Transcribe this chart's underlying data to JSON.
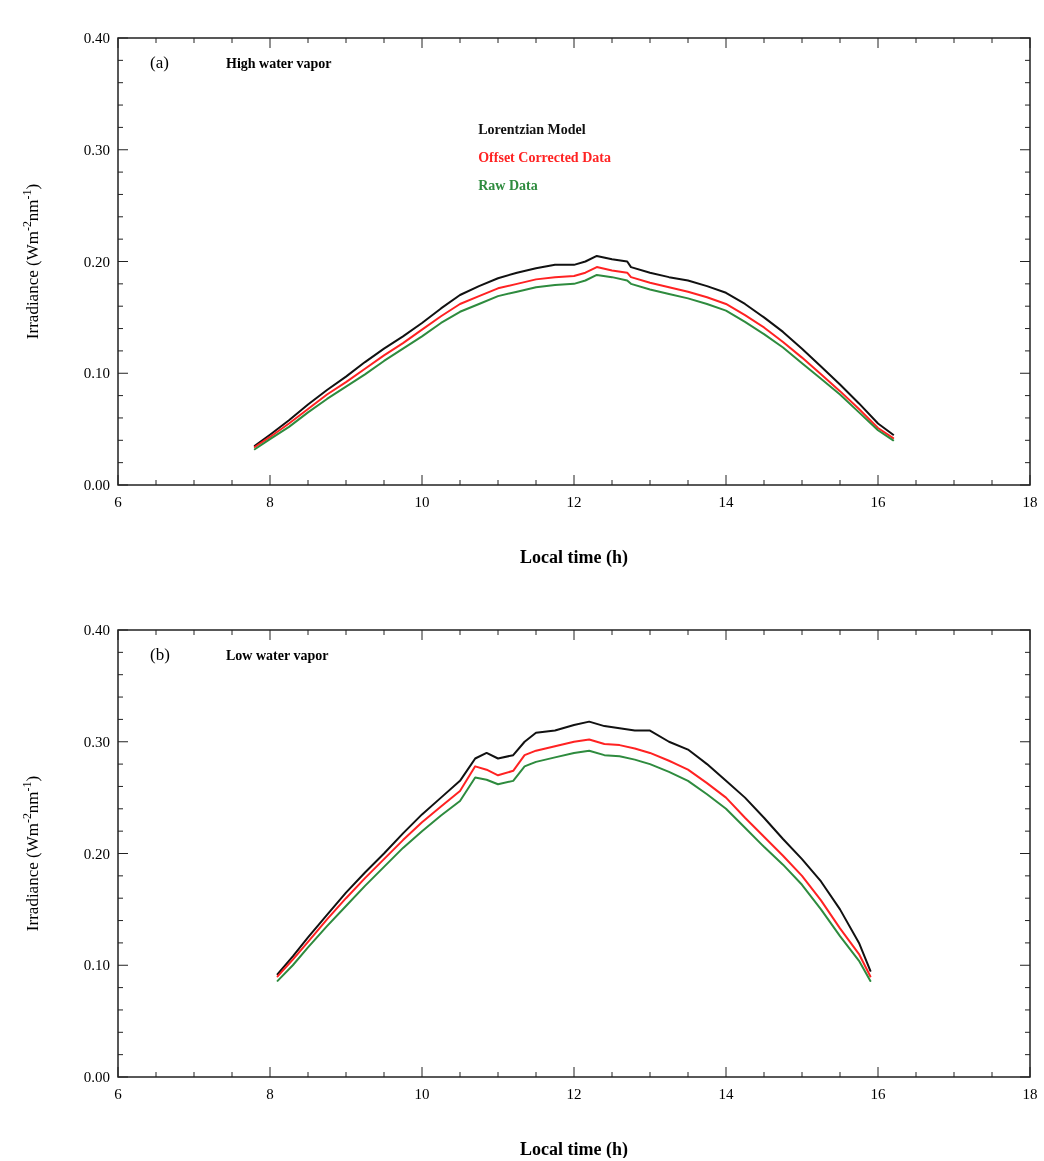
{
  "chart_data": [
    {
      "type": "line",
      "xlabel": "Local time (h)",
      "ylabel": "Irradiance (Wm$^{-2}$nm$^{-1}$)",
      "annotations": [
        "(a)",
        "High water vapor"
      ],
      "legend": "top",
      "grid": false,
      "marker": "none",
      "line_style": "solid",
      "xlim": [
        6,
        18
      ],
      "xticks": [
        6,
        {
          "value": 6.5,
          "label": null
        },
        {
          "value": 7,
          "label": null
        },
        {
          "value": 7.5,
          "label": null
        },
        8,
        {
          "value": 8.5,
          "label": null
        },
        {
          "value": 9,
          "label": null
        },
        {
          "value": 9.5,
          "label": null
        },
        10,
        {
          "value": 10.5,
          "label": null
        },
        {
          "value": 11,
          "label": null
        },
        {
          "value": 11.5,
          "label": null
        },
        12,
        {
          "value": 12.5,
          "label": null
        },
        {
          "value": 13,
          "label": null
        },
        {
          "value": 13.5,
          "label": null
        },
        14,
        {
          "value": 14.5,
          "label": null
        },
        {
          "value": 15,
          "label": null
        },
        {
          "value": 15.5,
          "label": null
        },
        16,
        {
          "value": 16.5,
          "label": null
        },
        {
          "value": 17,
          "label": null
        },
        {
          "value": 17.5,
          "label": null
        },
        18
      ],
      "ylim": [
        0,
        0.4
      ],
      "yticks": [
        {
          "value": 0,
          "label": "0.00"
        },
        {
          "value": 0.02,
          "label": null
        },
        {
          "value": 0.04,
          "label": null
        },
        {
          "value": 0.06,
          "label": null
        },
        {
          "value": 0.08,
          "label": null
        },
        {
          "value": 0.1,
          "label": "0.10"
        },
        {
          "value": 0.12,
          "label": null
        },
        {
          "value": 0.14,
          "label": null
        },
        {
          "value": 0.16,
          "label": null
        },
        {
          "value": 0.18,
          "label": null
        },
        {
          "value": 0.2,
          "label": "0.20"
        },
        {
          "value": 0.22,
          "label": null
        },
        {
          "value": 0.24,
          "label": null
        },
        {
          "value": 0.26,
          "label": null
        },
        {
          "value": 0.28,
          "label": null
        },
        {
          "value": 0.3,
          "label": "0.30"
        },
        {
          "value": 0.32,
          "label": null
        },
        {
          "value": 0.34,
          "label": null
        },
        {
          "value": 0.36,
          "label": null
        },
        {
          "value": 0.38,
          "label": null
        },
        {
          "value": 0.4,
          "label": "0.40"
        }
      ],
      "x": [
        7.8,
        8.0,
        8.25,
        8.5,
        8.75,
        9.0,
        9.25,
        9.5,
        9.75,
        10.0,
        10.25,
        10.5,
        10.75,
        11.0,
        11.25,
        11.5,
        11.75,
        12.0,
        12.15,
        12.3,
        12.5,
        12.7,
        12.75,
        13.0,
        13.25,
        13.5,
        13.75,
        14.0,
        14.25,
        14.5,
        14.75,
        15.0,
        15.25,
        15.5,
        15.75,
        16.0,
        16.2
      ],
      "series": [
        {
          "name": "Lorentzian Model",
          "color": "#111111",
          "values": [
            0.035,
            0.045,
            0.058,
            0.072,
            0.085,
            0.097,
            0.11,
            0.122,
            0.133,
            0.145,
            0.158,
            0.17,
            0.178,
            0.185,
            0.19,
            0.194,
            0.197,
            0.197,
            0.2,
            0.205,
            0.202,
            0.2,
            0.195,
            0.19,
            0.186,
            0.183,
            0.178,
            0.172,
            0.162,
            0.15,
            0.137,
            0.122,
            0.106,
            0.09,
            0.073,
            0.055,
            0.045
          ]
        },
        {
          "name": "Offset Corrected Data",
          "color": "#ff2222",
          "values": [
            0.034,
            0.043,
            0.055,
            0.068,
            0.081,
            0.092,
            0.104,
            0.116,
            0.127,
            0.139,
            0.151,
            0.162,
            0.169,
            0.176,
            0.18,
            0.184,
            0.186,
            0.187,
            0.19,
            0.195,
            0.192,
            0.19,
            0.186,
            0.181,
            0.177,
            0.173,
            0.168,
            0.162,
            0.152,
            0.141,
            0.128,
            0.114,
            0.099,
            0.084,
            0.068,
            0.051,
            0.042
          ]
        },
        {
          "name": "Raw Data",
          "color": "#2e8b3e",
          "values": [
            0.032,
            0.041,
            0.052,
            0.065,
            0.077,
            0.088,
            0.099,
            0.111,
            0.122,
            0.133,
            0.145,
            0.155,
            0.162,
            0.169,
            0.173,
            0.177,
            0.179,
            0.18,
            0.183,
            0.188,
            0.186,
            0.183,
            0.18,
            0.175,
            0.171,
            0.167,
            0.162,
            0.156,
            0.146,
            0.135,
            0.123,
            0.109,
            0.095,
            0.081,
            0.065,
            0.049,
            0.04
          ]
        }
      ]
    },
    {
      "type": "line",
      "xlabel": "Local time (h)",
      "ylabel": "Irradiance (Wm$^{-2}$nm$^{-1}$)",
      "annotations": [
        "(b)",
        "Low water vapor"
      ],
      "grid": false,
      "marker": "none",
      "line_style": "solid",
      "xlim": [
        6,
        18
      ],
      "xticks": [
        6,
        {
          "value": 6.5,
          "label": null
        },
        {
          "value": 7,
          "label": null
        },
        {
          "value": 7.5,
          "label": null
        },
        8,
        {
          "value": 8.5,
          "label": null
        },
        {
          "value": 9,
          "label": null
        },
        {
          "value": 9.5,
          "label": null
        },
        10,
        {
          "value": 10.5,
          "label": null
        },
        {
          "value": 11,
          "label": null
        },
        {
          "value": 11.5,
          "label": null
        },
        12,
        {
          "value": 12.5,
          "label": null
        },
        {
          "value": 13,
          "label": null
        },
        {
          "value": 13.5,
          "label": null
        },
        14,
        {
          "value": 14.5,
          "label": null
        },
        {
          "value": 15,
          "label": null
        },
        {
          "value": 15.5,
          "label": null
        },
        16,
        {
          "value": 16.5,
          "label": null
        },
        {
          "value": 17,
          "label": null
        },
        {
          "value": 17.5,
          "label": null
        },
        18
      ],
      "ylim": [
        0,
        0.4
      ],
      "yticks": [
        {
          "value": 0,
          "label": "0.00"
        },
        {
          "value": 0.02,
          "label": null
        },
        {
          "value": 0.04,
          "label": null
        },
        {
          "value": 0.06,
          "label": null
        },
        {
          "value": 0.08,
          "label": null
        },
        {
          "value": 0.1,
          "label": "0.10"
        },
        {
          "value": 0.12,
          "label": null
        },
        {
          "value": 0.14,
          "label": null
        },
        {
          "value": 0.16,
          "label": null
        },
        {
          "value": 0.18,
          "label": null
        },
        {
          "value": 0.2,
          "label": "0.20"
        },
        {
          "value": 0.22,
          "label": null
        },
        {
          "value": 0.24,
          "label": null
        },
        {
          "value": 0.26,
          "label": null
        },
        {
          "value": 0.28,
          "label": null
        },
        {
          "value": 0.3,
          "label": "0.30"
        },
        {
          "value": 0.32,
          "label": null
        },
        {
          "value": 0.34,
          "label": null
        },
        {
          "value": 0.36,
          "label": null
        },
        {
          "value": 0.38,
          "label": null
        },
        {
          "value": 0.4,
          "label": "0.40"
        }
      ],
      "x": [
        8.1,
        8.3,
        8.5,
        8.75,
        9.0,
        9.25,
        9.5,
        9.75,
        10.0,
        10.25,
        10.5,
        10.7,
        10.85,
        11.0,
        11.2,
        11.35,
        11.5,
        11.75,
        12.0,
        12.2,
        12.4,
        12.6,
        12.8,
        13.0,
        13.25,
        13.5,
        13.75,
        14.0,
        14.25,
        14.5,
        14.75,
        15.0,
        15.25,
        15.5,
        15.75,
        15.9
      ],
      "series": [
        {
          "color": "#111111",
          "values": [
            0.092,
            0.108,
            0.125,
            0.145,
            0.165,
            0.183,
            0.2,
            0.218,
            0.235,
            0.25,
            0.265,
            0.285,
            0.29,
            0.285,
            0.288,
            0.3,
            0.308,
            0.31,
            0.315,
            0.318,
            0.314,
            0.312,
            0.31,
            0.31,
            0.3,
            0.293,
            0.28,
            0.265,
            0.25,
            0.232,
            0.213,
            0.195,
            0.175,
            0.15,
            0.12,
            0.095
          ]
        },
        {
          "color": "#ff2222",
          "values": [
            0.09,
            0.105,
            0.121,
            0.141,
            0.16,
            0.178,
            0.195,
            0.212,
            0.228,
            0.242,
            0.256,
            0.278,
            0.275,
            0.27,
            0.274,
            0.288,
            0.292,
            0.296,
            0.3,
            0.302,
            0.298,
            0.297,
            0.294,
            0.29,
            0.283,
            0.275,
            0.263,
            0.25,
            0.232,
            0.215,
            0.198,
            0.18,
            0.158,
            0.133,
            0.11,
            0.09
          ]
        },
        {
          "color": "#2e8b3e",
          "values": [
            0.086,
            0.1,
            0.116,
            0.135,
            0.153,
            0.171,
            0.188,
            0.205,
            0.22,
            0.234,
            0.247,
            0.268,
            0.266,
            0.262,
            0.265,
            0.278,
            0.282,
            0.286,
            0.29,
            0.292,
            0.288,
            0.287,
            0.284,
            0.28,
            0.273,
            0.265,
            0.253,
            0.24,
            0.223,
            0.206,
            0.19,
            0.172,
            0.15,
            0.126,
            0.104,
            0.086
          ]
        }
      ]
    }
  ]
}
